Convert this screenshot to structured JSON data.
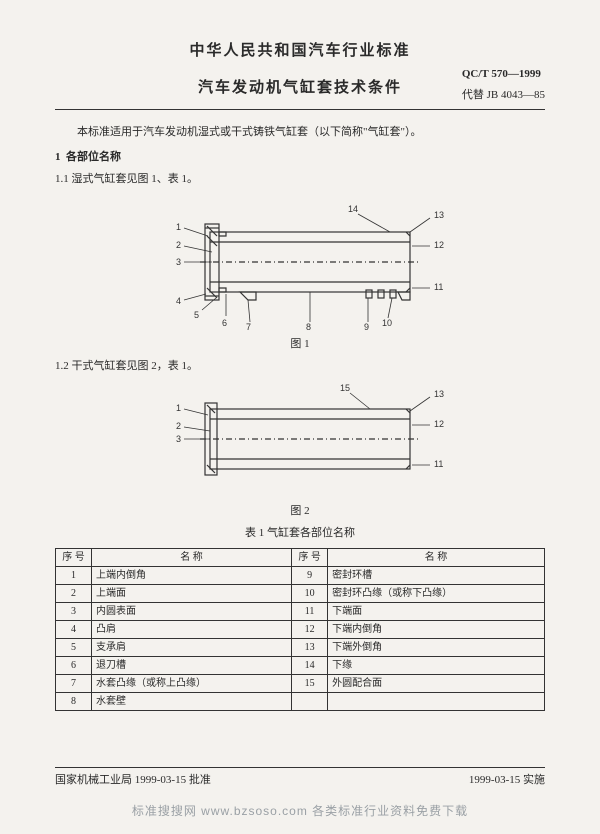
{
  "header": {
    "main": "中华人民共和国汽车行业标准",
    "sub": "汽车发动机气缸套技术条件",
    "std_no": "QC/T 570—1999",
    "replace": "代替 JB 4043—85"
  },
  "intro": "本标准适用于汽车发动机湿式或干式铸铁气缸套（以下简称\"气缸套\"）。",
  "s1": {
    "num": "1",
    "title": "各部位名称"
  },
  "s11": "1.1  湿式气缸套见图 1、表 1。",
  "fig1": {
    "cap": "图 1",
    "labels": {
      "l1": "1",
      "l2": "2",
      "l3": "3",
      "l4": "4",
      "l5": "5",
      "l6": "6",
      "l7": "7",
      "l8": "8",
      "l9": "9",
      "l10": "10",
      "l11": "11",
      "l12": "12",
      "l13": "13",
      "l14": "14"
    }
  },
  "s12": "1.2  干式气缸套见图 2，表 1。",
  "fig2": {
    "cap": "图 2",
    "labels": {
      "l1": "1",
      "l2": "2",
      "l3": "3",
      "l11": "11",
      "l12": "12",
      "l13": "13",
      "l15": "15"
    }
  },
  "table": {
    "title": "表 1  气缸套各部位名称",
    "head": {
      "no": "序  号",
      "name": "名        称"
    },
    "rows": [
      {
        "n": "1",
        "a": "上端内倒角",
        "m": "9",
        "b": "密封环槽"
      },
      {
        "n": "2",
        "a": "上端面",
        "m": "10",
        "b": "密封环凸缘（或称下凸缘）"
      },
      {
        "n": "3",
        "a": "内圆表面",
        "m": "11",
        "b": "下端面"
      },
      {
        "n": "4",
        "a": "凸肩",
        "m": "12",
        "b": "下端内倒角"
      },
      {
        "n": "5",
        "a": "支承肩",
        "m": "13",
        "b": "下端外倒角"
      },
      {
        "n": "6",
        "a": "退刀槽",
        "m": "14",
        "b": "下缘"
      },
      {
        "n": "7",
        "a": "水套凸缘（或称上凸缘）",
        "m": "15",
        "b": "外圆配合面"
      },
      {
        "n": "8",
        "a": "水套壁",
        "m": "",
        "b": ""
      }
    ]
  },
  "footer": {
    "left": "国家机械工业局 1999-03-15 批准",
    "right": "1999-03-15 实施"
  },
  "watermark": "标准搜搜网  www.bzsoso.com  各类标准行业资料免费下载",
  "colors": {
    "ink": "#2a2a2a",
    "line": "#333",
    "bg": "#f4f2ee"
  }
}
